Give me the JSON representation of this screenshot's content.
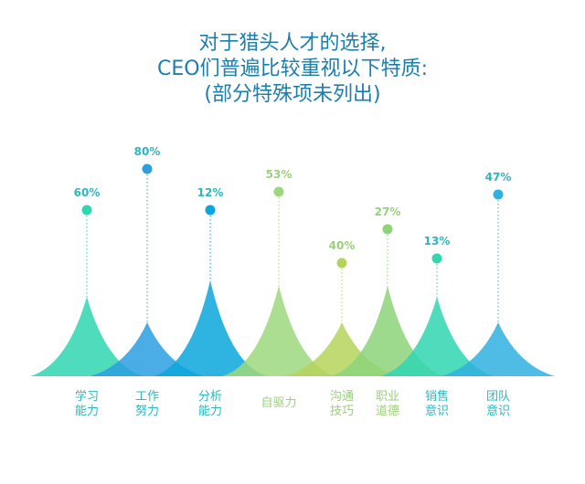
{
  "title": {
    "line1": "对于猎头人才的选择,",
    "line2": "CEO们普遍比较重视以下特质:",
    "line3": "(部分特殊项未列出)"
  },
  "chart_data": {
    "type": "area",
    "title": "对于猎头人才的选择, CEO们普遍比较重视以下特质: (部分特殊项未列出)",
    "unit": "%",
    "categories": [
      "学习\n能力",
      "工作\n努力",
      "分析\n能力",
      "自驱力",
      "沟通\n技巧",
      "职业\n道德",
      "销售\n意识",
      "团队\n意识"
    ],
    "values": [
      60,
      80,
      12,
      53,
      40,
      27,
      13,
      47
    ],
    "value_labels": [
      "60%",
      "80%",
      "12%",
      "53%",
      "40%",
      "27%",
      "13%",
      "47%"
    ],
    "colors": [
      "#2fd6b0",
      "#2c9fe0",
      "#0aa7dc",
      "#9cd87c",
      "#b5d35c",
      "#8cd37a",
      "#2fd6b0",
      "#2fb0e0"
    ],
    "label_colors": [
      "#2bb7c0",
      "#2bb7c0",
      "#2bb7c0",
      "#9ccf7c",
      "#9ccf7c",
      "#9ccf7c",
      "#2bb7c0",
      "#2bb7c0"
    ],
    "grid": false,
    "legend": "none"
  }
}
